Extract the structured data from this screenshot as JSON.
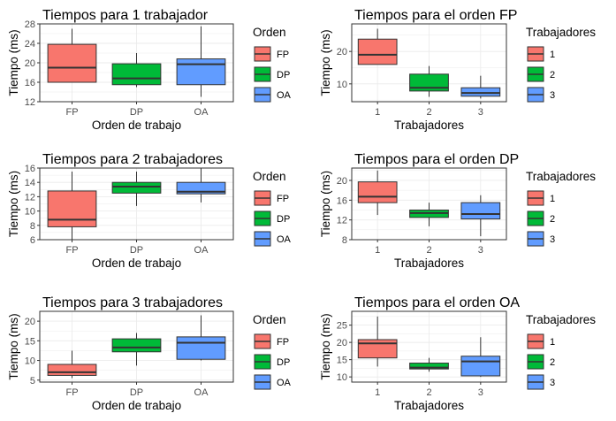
{
  "colors": {
    "FP": "#F8766D",
    "DP": "#00BA38",
    "OA": "#619CFF",
    "1": "#F8766D",
    "2": "#00BA38",
    "3": "#619CFF"
  },
  "chart_data": [
    {
      "type": "boxplot",
      "title": "Tiempos para 1 trabajador",
      "xlabel": "Orden de trabajo",
      "ylabel": "Tiempo (ms)",
      "ylim": [
        12,
        28
      ],
      "yticks": [
        12,
        16,
        20,
        24,
        28
      ],
      "legend_title": "Orden",
      "categories": [
        "FP",
        "DP",
        "OA"
      ],
      "boxes": [
        {
          "min": 16,
          "q1": 16,
          "median": 19,
          "q3": 23.8,
          "max": 27
        },
        {
          "min": 15,
          "q1": 15.5,
          "median": 16.8,
          "q3": 19.8,
          "max": 22
        },
        {
          "min": 13,
          "q1": 15.5,
          "median": 19.7,
          "q3": 20.8,
          "max": 27.5
        }
      ]
    },
    {
      "type": "boxplot",
      "title": "Tiempos para el orden FP",
      "xlabel": "Trabajadores",
      "ylabel": "Tiempo (ms)",
      "ylim": [
        4.5,
        28.5
      ],
      "yticks": [
        10,
        20
      ],
      "legend_title": "Trabajadores",
      "categories": [
        "1",
        "2",
        "3"
      ],
      "boxes": [
        {
          "min": 16,
          "q1": 16,
          "median": 19,
          "q3": 23.8,
          "max": 27
        },
        {
          "min": 6,
          "q1": 7.8,
          "median": 8.8,
          "q3": 13,
          "max": 15.5
        },
        {
          "min": 5.5,
          "q1": 6.2,
          "median": 7.2,
          "q3": 8.8,
          "max": 12.5
        }
      ]
    },
    {
      "type": "boxplot",
      "title": "Tiempos para 2 trabajadores",
      "xlabel": "Orden de trabajo",
      "ylabel": "Tiempo (ms)",
      "ylim": [
        6,
        16
      ],
      "yticks": [
        6,
        8,
        10,
        12,
        14,
        16
      ],
      "legend_title": "Orden",
      "categories": [
        "FP",
        "DP",
        "OA"
      ],
      "boxes": [
        {
          "min": 6,
          "q1": 7.8,
          "median": 8.8,
          "q3": 12.8,
          "max": 15.5
        },
        {
          "min": 10.7,
          "q1": 12.5,
          "median": 13.4,
          "q3": 14,
          "max": 15.5
        },
        {
          "min": 11.2,
          "q1": 12.4,
          "median": 12.7,
          "q3": 14,
          "max": 16
        }
      ]
    },
    {
      "type": "boxplot",
      "title": "Tiempos para el orden DP",
      "xlabel": "Trabajadores",
      "ylabel": "Tiempo (ms)",
      "ylim": [
        8,
        22.5
      ],
      "yticks": [
        8,
        12,
        16,
        20
      ],
      "legend_title": "Trabajadores",
      "categories": [
        "1",
        "2",
        "3"
      ],
      "boxes": [
        {
          "min": 13,
          "q1": 15.5,
          "median": 16.7,
          "q3": 19.7,
          "max": 22
        },
        {
          "min": 10.7,
          "q1": 12.5,
          "median": 13.4,
          "q3": 14,
          "max": 15.5
        },
        {
          "min": 8.7,
          "q1": 12.2,
          "median": 13.2,
          "q3": 15.5,
          "max": 17
        }
      ]
    },
    {
      "type": "boxplot",
      "title": "Tiempos para 3 trabajadores",
      "xlabel": "Orden de trabajo",
      "ylabel": "Tiempo (ms)",
      "ylim": [
        4.5,
        22.5
      ],
      "yticks": [
        5,
        10,
        15,
        20
      ],
      "legend_title": "Orden",
      "categories": [
        "FP",
        "DP",
        "OA"
      ],
      "boxes": [
        {
          "min": 5.5,
          "q1": 6.2,
          "median": 7,
          "q3": 9,
          "max": 12.5
        },
        {
          "min": 8.7,
          "q1": 12.2,
          "median": 13.3,
          "q3": 15.5,
          "max": 17
        },
        {
          "min": 10,
          "q1": 10.3,
          "median": 14.5,
          "q3": 16,
          "max": 21.5
        }
      ]
    },
    {
      "type": "boxplot",
      "title": "Tiempos para el orden OA",
      "xlabel": "Trabajadores",
      "ylabel": "Tiempo (ms)",
      "ylim": [
        8.5,
        29
      ],
      "yticks": [
        10,
        15,
        20,
        25
      ],
      "legend_title": "Trabajadores",
      "categories": [
        "1",
        "2",
        "3"
      ],
      "boxes": [
        {
          "min": 13,
          "q1": 15.5,
          "median": 19.7,
          "q3": 20.8,
          "max": 27.5
        },
        {
          "min": 11.5,
          "q1": 12.3,
          "median": 12.7,
          "q3": 14,
          "max": 15.5
        },
        {
          "min": 10,
          "q1": 10.3,
          "median": 14.5,
          "q3": 16,
          "max": 21.5
        }
      ]
    }
  ]
}
